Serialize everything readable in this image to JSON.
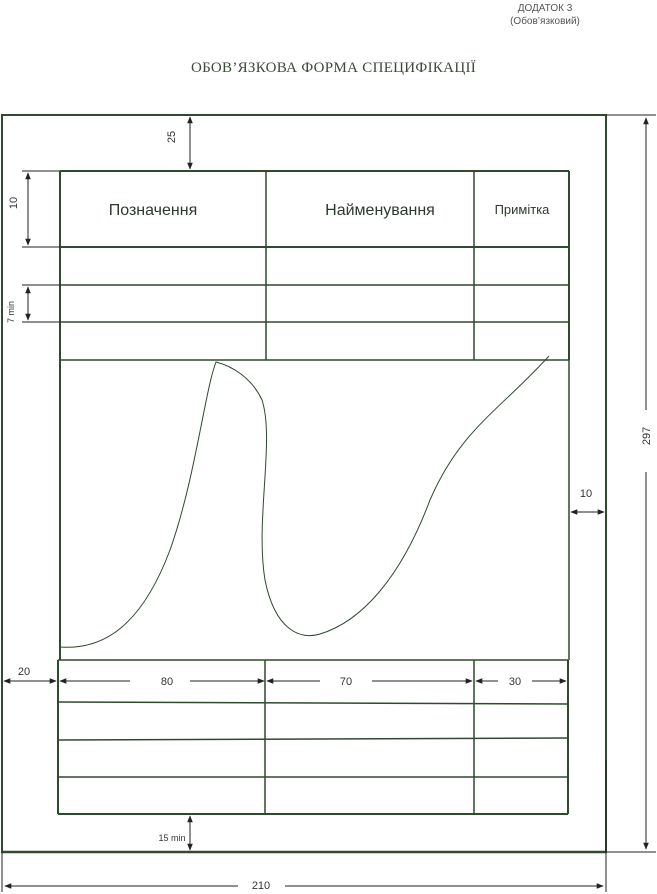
{
  "appendix": {
    "line1": "ДОДАТОК 3",
    "line2": "(Обов’язковий)"
  },
  "title": "ОБОВ’ЯЗКОВА ФОРМА  СПЕЦИФІКАЦІЇ",
  "table": {
    "headers": [
      "Позначення",
      "Найменування",
      "Примітка"
    ]
  },
  "dimensions": {
    "top_margin": "25",
    "header_height": "10",
    "row_height": "7 min",
    "right_margin": "10",
    "left_margin": "20",
    "bottom_margin": "15 min",
    "col_1_width": "80",
    "col_2_width": "70",
    "col_3_width": "30",
    "sheet_height": "297",
    "sheet_width": "210"
  },
  "colors": {
    "frame": "#2f4a2f",
    "dimension_line": "#333333"
  }
}
